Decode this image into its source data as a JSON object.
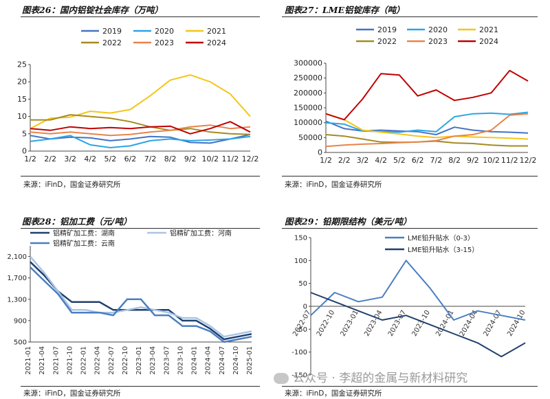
{
  "chart_data": [
    {
      "type": "line",
      "title": "图表26：国内铝锭社会库存（万吨）",
      "source": "来源：iFinD，国金证券研究所",
      "x": [
        "1/2",
        "2/2",
        "3/2",
        "4/2",
        "5/2",
        "6/2",
        "7/2",
        "8/2",
        "9/2",
        "10/2",
        "11/2",
        "12/2"
      ],
      "ylim": [
        0,
        25
      ],
      "yticks": [
        "0",
        "5",
        "10",
        "15",
        "20",
        "25"
      ],
      "series": [
        {
          "name": "2019",
          "color": "#4472c4",
          "values": [
            4.5,
            3.5,
            4.0,
            3.8,
            3.0,
            3.5,
            4.2,
            4.0,
            2.5,
            2.3,
            3.5,
            4.8
          ]
        },
        {
          "name": "2020",
          "color": "#2aa5e6",
          "values": [
            2.8,
            3.5,
            4.5,
            1.8,
            1.0,
            1.5,
            3.0,
            3.5,
            3.0,
            3.2,
            3.5,
            4.2
          ]
        },
        {
          "name": "2021",
          "color": "#f5c518",
          "values": [
            6.5,
            9.5,
            9.8,
            11.5,
            11.0,
            12.0,
            16.0,
            20.5,
            22.0,
            20.0,
            16.5,
            10.0
          ]
        },
        {
          "name": "2022",
          "color": "#a68a1e",
          "values": [
            9.0,
            9.0,
            10.5,
            10.0,
            9.5,
            8.5,
            7.0,
            6.0,
            6.5,
            5.5,
            5.0,
            4.8
          ]
        },
        {
          "name": "2023",
          "color": "#e8834a",
          "values": [
            5.5,
            5.0,
            5.5,
            5.0,
            4.5,
            4.8,
            5.5,
            6.0,
            7.0,
            7.5,
            6.5,
            7.0
          ]
        },
        {
          "name": "2024",
          "color": "#c00000",
          "values": [
            6.5,
            6.0,
            7.0,
            6.5,
            6.8,
            6.5,
            7.0,
            7.2,
            5.0,
            6.5,
            8.5,
            5.5
          ]
        }
      ]
    },
    {
      "type": "line",
      "title": "图表27：LME铝锭库存（吨）",
      "source": "来源：iFinD，国金证券研究所",
      "x": [
        "1/2",
        "2/2",
        "3/2",
        "4/2",
        "5/2",
        "6/2",
        "7/2",
        "8/2",
        "9/2",
        "10/2",
        "11/2",
        "12/2"
      ],
      "ylim": [
        0,
        300000
      ],
      "yticks": [
        "0",
        "50000",
        "100000",
        "150000",
        "200000",
        "250000",
        "300000"
      ],
      "series": [
        {
          "name": "2019",
          "color": "#4472c4",
          "values": [
            105000,
            80000,
            72000,
            75000,
            72000,
            70000,
            60000,
            85000,
            75000,
            70000,
            68000,
            65000
          ]
        },
        {
          "name": "2020",
          "color": "#2aa5e6",
          "values": [
            100000,
            95000,
            72000,
            70000,
            68000,
            75000,
            70000,
            120000,
            130000,
            132000,
            128000,
            135000
          ]
        },
        {
          "name": "2021",
          "color": "#f5c518",
          "values": [
            130000,
            110000,
            75000,
            68000,
            62000,
            55000,
            50000,
            55000,
            52000,
            50000,
            48000,
            45000
          ]
        },
        {
          "name": "2022",
          "color": "#a68a1e",
          "values": [
            60000,
            55000,
            45000,
            35000,
            34000,
            35000,
            38000,
            32000,
            30000,
            25000,
            22000,
            22000
          ]
        },
        {
          "name": "2023",
          "color": "#e8834a",
          "values": [
            20000,
            25000,
            28000,
            30000,
            33000,
            35000,
            40000,
            55000,
            60000,
            75000,
            125000,
            130000
          ]
        },
        {
          "name": "2024",
          "color": "#c00000",
          "values": [
            130000,
            110000,
            180000,
            265000,
            260000,
            190000,
            210000,
            175000,
            185000,
            200000,
            275000,
            240000
          ]
        }
      ]
    },
    {
      "type": "line",
      "title": "图表28：铝加工费（元/吨）",
      "source": "来源：iFinD，国金证券研究所",
      "x": [
        "2021-01",
        "2021-04",
        "2021-07",
        "2021-10",
        "2022-01",
        "2022-04",
        "2022-07",
        "2022-10",
        "2023-01",
        "2023-04",
        "2023-07",
        "2023-10",
        "2024-01",
        "2024-04",
        "2024-07",
        "2024-10",
        "2025-01"
      ],
      "ylim": [
        500,
        2300
      ],
      "yticks": [
        "500",
        "900",
        "1,300",
        "1,700",
        "2,100"
      ],
      "series": [
        {
          "name": "铝精矿加工费：湖南",
          "color": "#1f3f6e",
          "values": [
            2000,
            1750,
            1450,
            1250,
            1250,
            1250,
            1100,
            1100,
            1100,
            1100,
            1100,
            900,
            900,
            750,
            550,
            600,
            650
          ]
        },
        {
          "name": "铝精矿加工费：河南",
          "color": "#a9c4e4",
          "values": [
            2100,
            1800,
            1450,
            1100,
            1100,
            1050,
            1050,
            1100,
            1150,
            1100,
            1050,
            950,
            950,
            800,
            600,
            650,
            700
          ]
        },
        {
          "name": "铝精矿加工费：云南",
          "color": "#4a7ec0",
          "values": [
            1900,
            1650,
            1400,
            1050,
            1050,
            1050,
            1000,
            1300,
            1300,
            1000,
            1000,
            800,
            800,
            700,
            500,
            550,
            600
          ]
        }
      ]
    },
    {
      "type": "line",
      "title": "图表29：铅期限结构（美元/吨）",
      "source": "来源：iFinD，国金证券研究所",
      "x": [
        "2022-07",
        "2022-10",
        "2023-01",
        "2023-04",
        "2023-07",
        "2023-10",
        "2024-01",
        "2024-04",
        "2024-07",
        "2024-10"
      ],
      "ylim": [
        -150,
        150
      ],
      "yticks": [
        "-150",
        "-100",
        "-50",
        "0",
        "50",
        "100",
        "150"
      ],
      "series": [
        {
          "name": "LME铅升贴水（0-3）",
          "color": "#4a7ec0",
          "values": [
            -20,
            30,
            10,
            20,
            100,
            40,
            -30,
            -10,
            -20,
            -30
          ]
        },
        {
          "name": "LME铅升贴水（3-15）",
          "color": "#1f3f6e",
          "values": [
            30,
            10,
            -10,
            -30,
            -20,
            -40,
            -60,
            -80,
            -110,
            -80
          ]
        }
      ]
    }
  ],
  "watermark": "公众号 · 李超的金属与新材料研究"
}
